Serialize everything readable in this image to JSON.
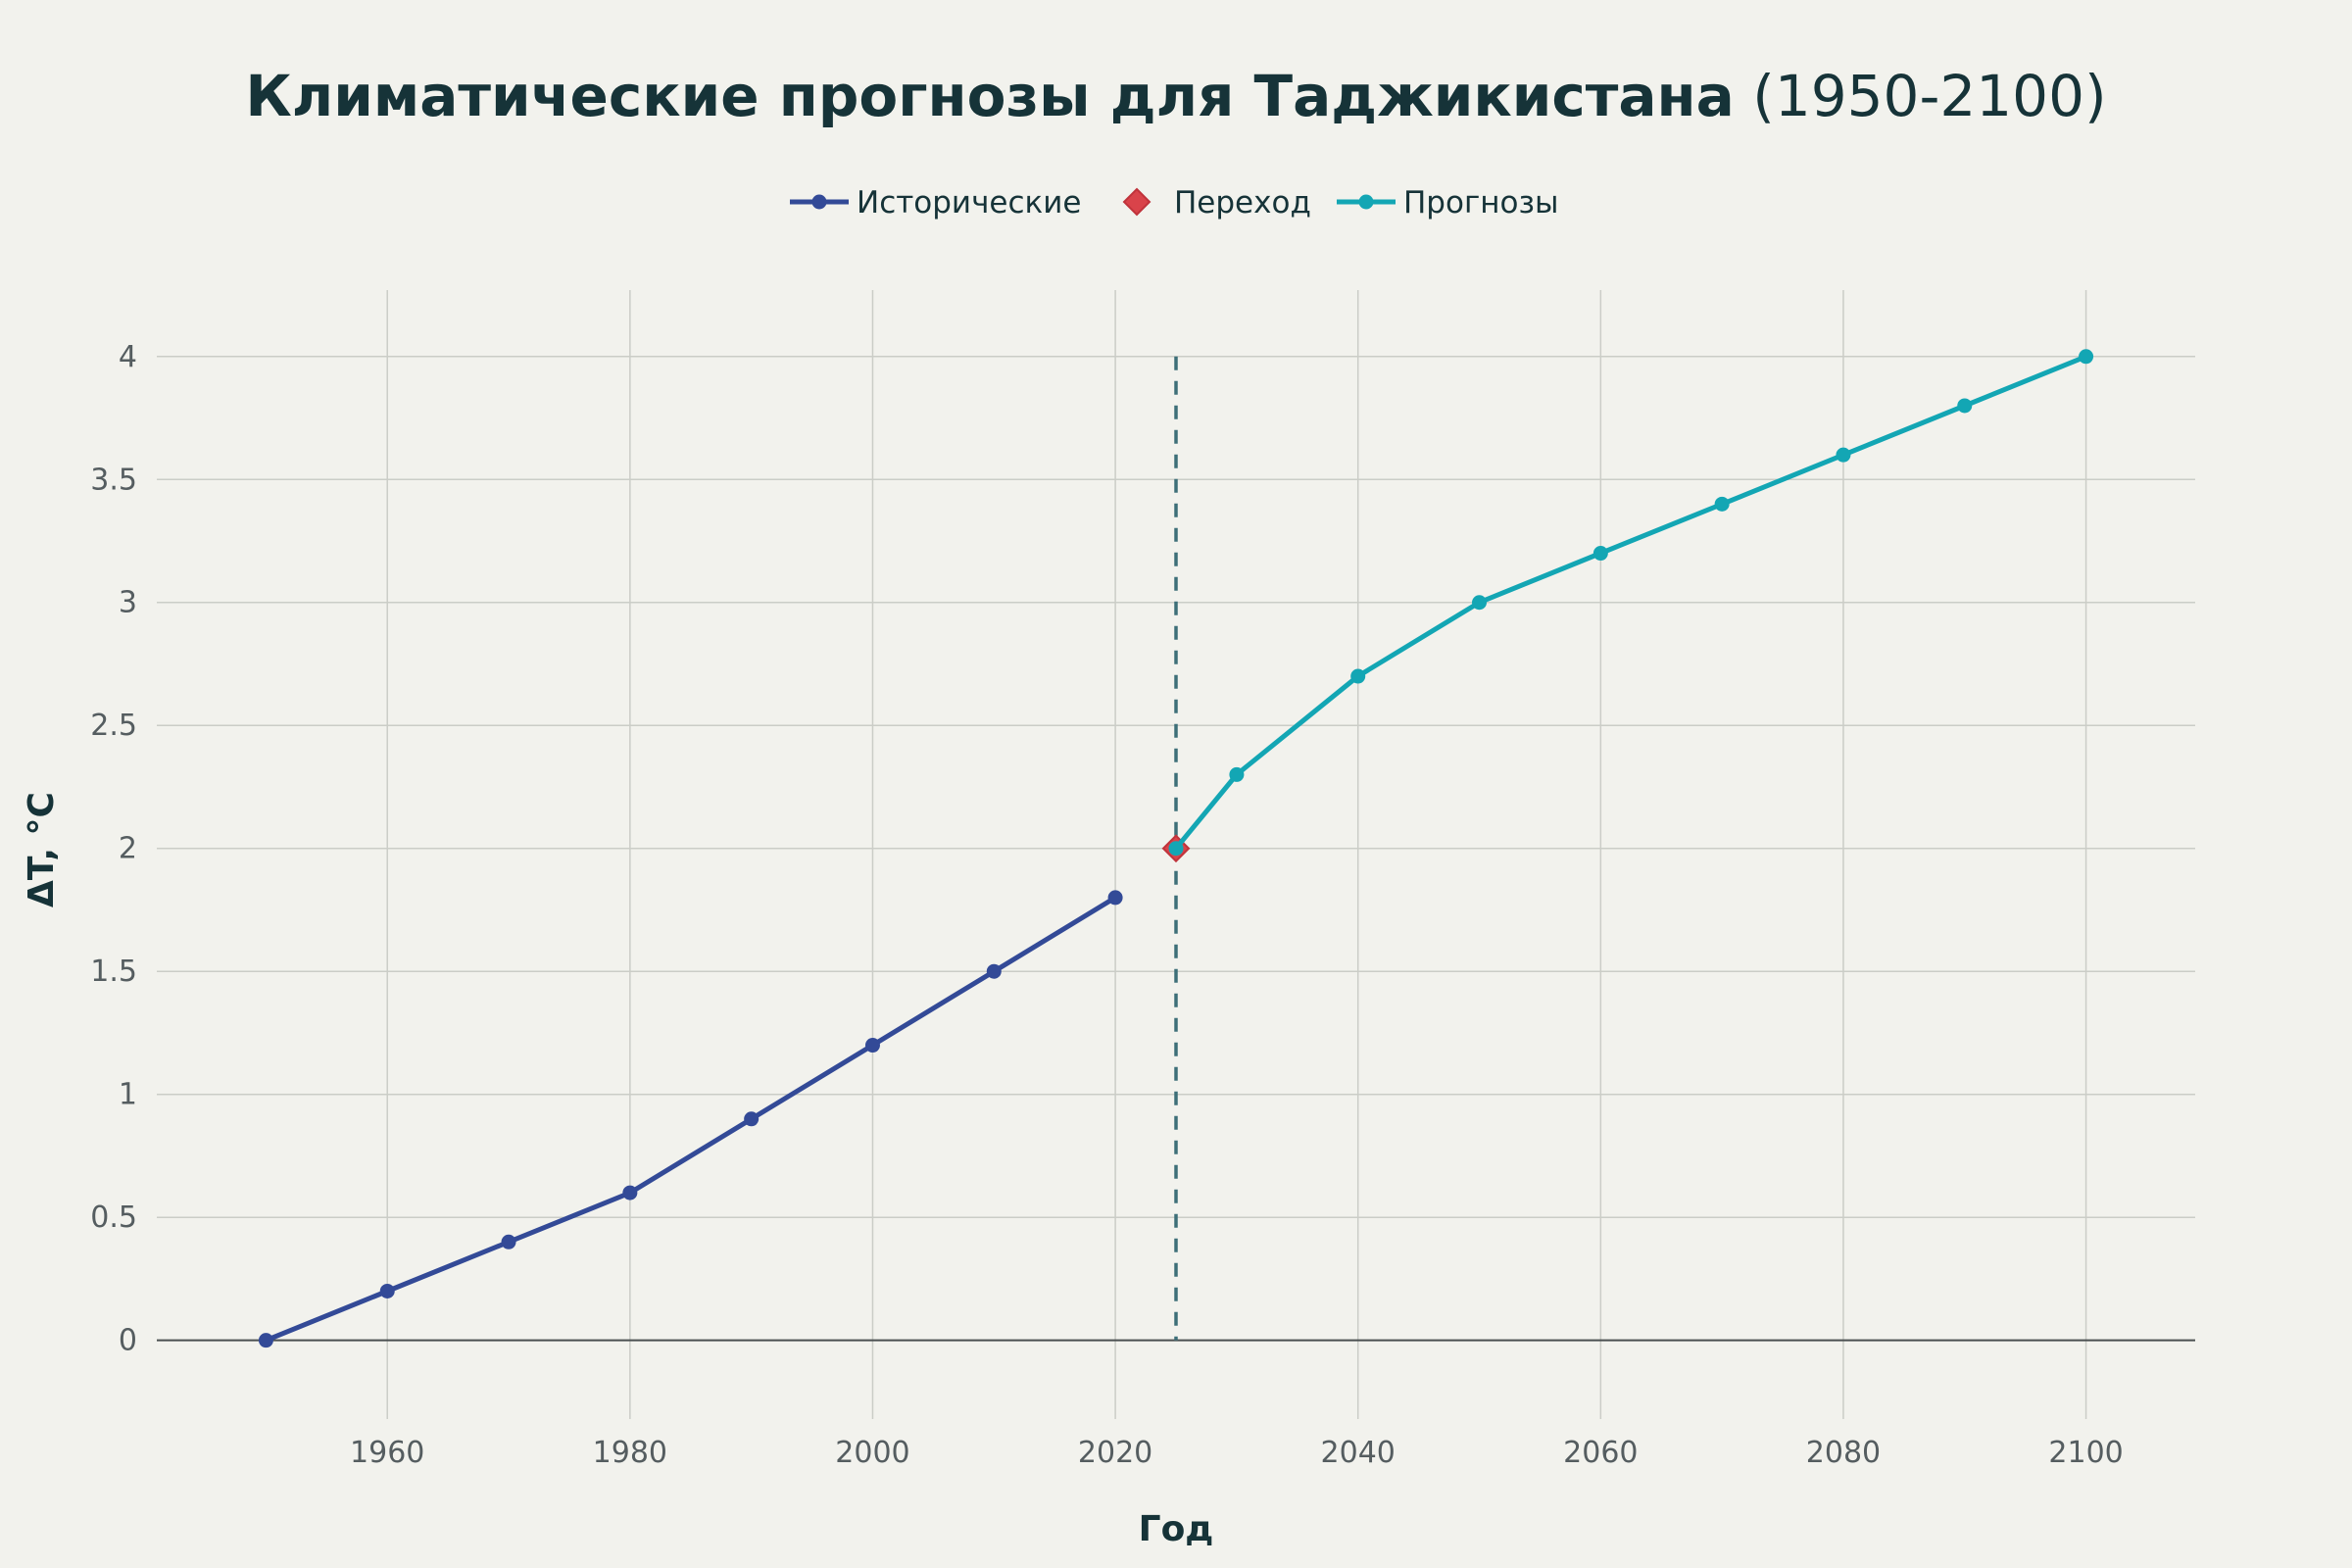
{
  "chart_data": {
    "type": "line",
    "title": "Климатические прогнозы для Таджикистана",
    "title_suffix": "(1950-2100)",
    "xlabel": "Год",
    "ylabel": "ΔT, °C",
    "xlim": [
      1941,
      2109
    ],
    "ylim": [
      -0.32,
      4.27
    ],
    "x_ticks": [
      "1960",
      "1980",
      "2000",
      "2020",
      "2040",
      "2060",
      "2080",
      "2100"
    ],
    "y_ticks": [
      "0",
      "0.5",
      "1",
      "1.5",
      "2",
      "2.5",
      "3",
      "3.5",
      "4"
    ],
    "grid": true,
    "legend_position": "top-center",
    "reference_line": {
      "x": 2025,
      "style": "dashed",
      "color": "#3d6f78"
    },
    "series": [
      {
        "name": "Исторические",
        "mode": "lines+markers",
        "color": "#334a97",
        "x": [
          1950,
          1960,
          1970,
          1980,
          1990,
          2000,
          2010,
          2020
        ],
        "y": [
          0,
          0.2,
          0.4,
          0.6,
          0.9,
          1.2,
          1.5,
          1.8
        ]
      },
      {
        "name": "Переход",
        "mode": "markers",
        "marker": "diamond",
        "color": "#d9434a",
        "x": [
          2025
        ],
        "y": [
          2.0
        ]
      },
      {
        "name": "Прогнозы",
        "mode": "lines+markers",
        "color": "#13a6b4",
        "x": [
          2025,
          2030,
          2040,
          2050,
          2060,
          2070,
          2080,
          2090,
          2100
        ],
        "y": [
          2.0,
          2.3,
          2.7,
          3.0,
          3.2,
          3.4,
          3.6,
          3.8,
          4.0
        ]
      }
    ]
  }
}
